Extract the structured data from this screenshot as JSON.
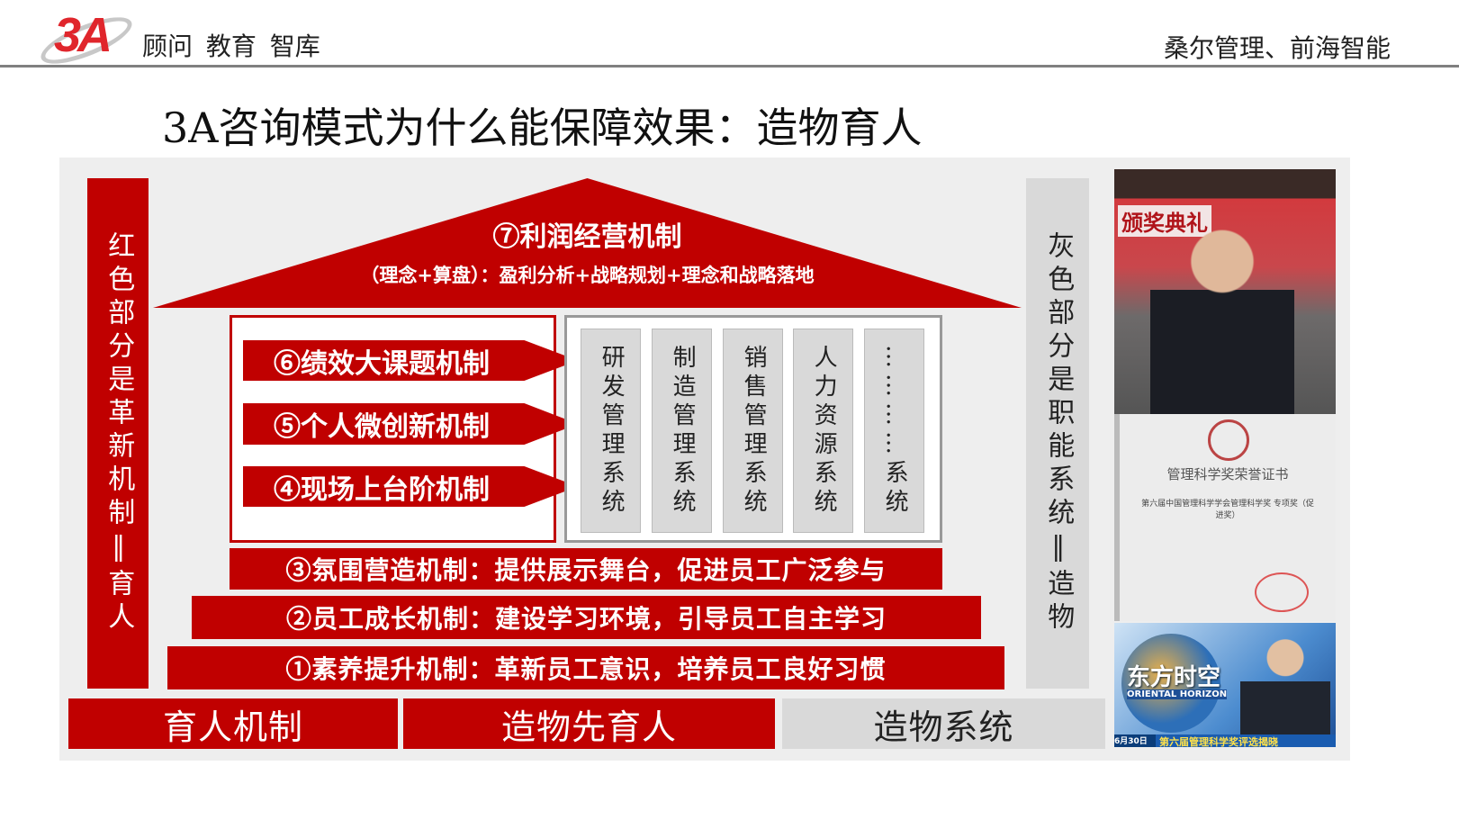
{
  "header": {
    "logo_text": "3A",
    "tagline": "顾问 教育 智库",
    "right_text": "桑尔管理、前海智能"
  },
  "title": "3A咨询模式为什么能保障效果：造物育人",
  "left_bar": "红色部分是革新机制‖育人",
  "right_bar": "灰色部分是职能系统‖造物",
  "roof": {
    "title": "⑦利润经营机制",
    "subtitle": "（理念+算盘）：盈利分析+战略规划+理念和战略落地"
  },
  "arrows": [
    "⑥绩效大课题机制",
    "⑤个人微创新机制",
    "④现场上台阶机制"
  ],
  "systems": [
    "研发管理系统",
    "制造管理系统",
    "销售管理系统",
    "人力资源系统",
    "…………系统"
  ],
  "bars": [
    "③氛围营造机制：提供展示舞台，促进员工广泛参与",
    "②员工成长机制：建设学习环境，引导员工自主学习",
    "①素养提升机制：革新员工意识，培养员工良好习惯"
  ],
  "footer": [
    "育人机制",
    "造物先育人",
    "造物系统"
  ],
  "images": {
    "award_banner": "颁奖典礼",
    "certificate_title": "管理科学奖荣誉证书",
    "certificate_sub": "第六届中国管理科学学会管理科学奖 专项奖（促进奖）",
    "tv_logo": "东方时空",
    "tv_logo_en": "ORIENTAL HORIZON",
    "tv_caption": "第六届管理科学奖评选揭晓",
    "tv_date": "6月30日"
  },
  "colors": {
    "red": "#c00000",
    "gray": "#d9d9d9",
    "panel": "#eeeeee"
  }
}
